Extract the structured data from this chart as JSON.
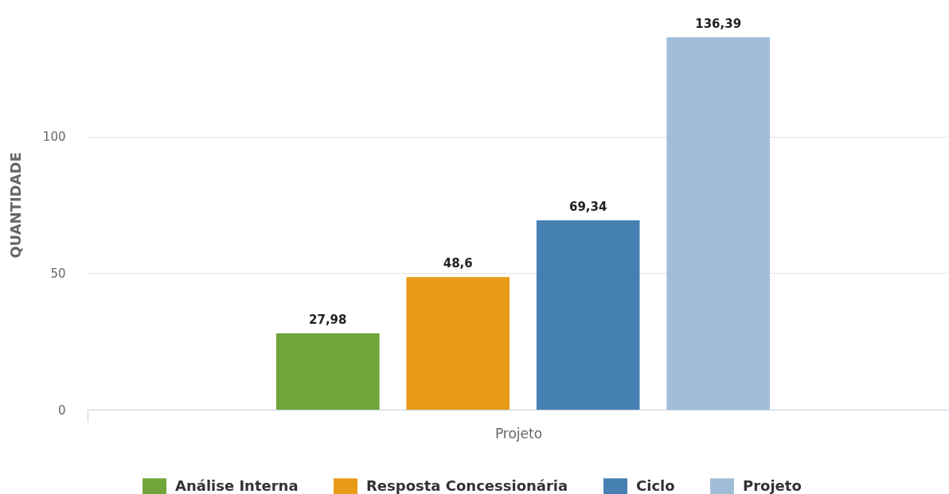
{
  "chart_data": {
    "type": "bar",
    "ylabel": "QUANTIDADE",
    "categories": [
      "Projeto"
    ],
    "series": [
      {
        "name": "Análise Interna",
        "color": "#6fa53a",
        "values": [
          27.98
        ],
        "value_labels": [
          "27,98"
        ]
      },
      {
        "name": "Resposta Concessionária",
        "color": "#e89b17",
        "values": [
          48.6
        ],
        "value_labels": [
          "48,6"
        ]
      },
      {
        "name": "Ciclo",
        "color": "#4680b3",
        "values": [
          69.34
        ],
        "value_labels": [
          "69,34"
        ]
      },
      {
        "name": "Projeto",
        "color": "#a1bed9",
        "values": [
          136.39
        ],
        "value_labels": [
          "136,39"
        ]
      }
    ],
    "ylim": [
      0,
      150
    ],
    "yticks": [
      0,
      50,
      100
    ],
    "grid": "y",
    "legend": "bottom"
  }
}
